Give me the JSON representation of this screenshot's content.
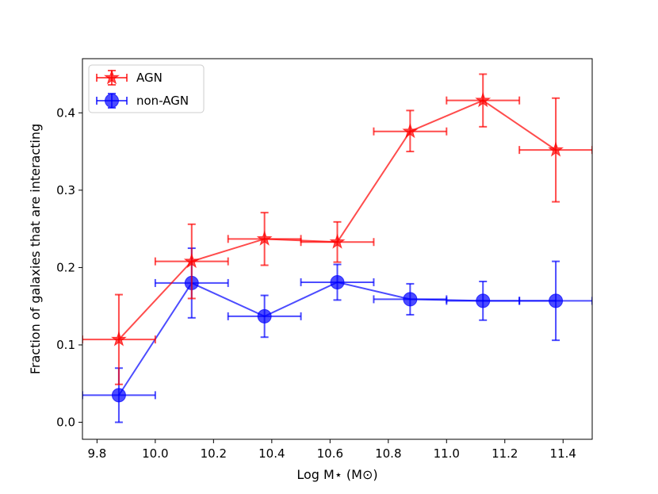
{
  "chart_data": {
    "type": "scatter",
    "title": "",
    "xlabel": "Log M⋆ (M⊙)",
    "ylabel": "Fraction of galaxies that are interacting",
    "xlim": [
      9.75,
      11.5
    ],
    "ylim": [
      -0.022,
      0.47
    ],
    "xticks": [
      9.8,
      10.0,
      10.2,
      10.4,
      10.6,
      10.8,
      11.0,
      11.2,
      11.4
    ],
    "xtick_labels": [
      "9.8",
      "10.0",
      "10.2",
      "10.4",
      "10.6",
      "10.8",
      "11.0",
      "11.2",
      "11.4"
    ],
    "yticks": [
      0.0,
      0.1,
      0.2,
      0.3,
      0.4
    ],
    "ytick_labels": [
      "0.0",
      "0.1",
      "0.2",
      "0.3",
      "0.4"
    ],
    "grid": false,
    "legend_position": "top-left",
    "series": [
      {
        "name": "AGN",
        "color": "#ff0000",
        "marker": "star",
        "x": [
          9.875,
          10.125,
          10.375,
          10.625,
          10.875,
          11.125,
          11.375
        ],
        "y": [
          0.107,
          0.208,
          0.237,
          0.233,
          0.376,
          0.416,
          0.352
        ],
        "xerr": [
          0.125,
          0.125,
          0.125,
          0.125,
          0.125,
          0.125,
          0.125
        ],
        "yerr_low": [
          0.058,
          0.048,
          0.034,
          0.026,
          0.026,
          0.034,
          0.067
        ],
        "yerr_high": [
          0.058,
          0.048,
          0.034,
          0.026,
          0.027,
          0.034,
          0.067
        ]
      },
      {
        "name": "non-AGN",
        "color": "#0000ff",
        "marker": "circle",
        "x": [
          9.875,
          10.125,
          10.375,
          10.625,
          10.875,
          11.125,
          11.375
        ],
        "y": [
          0.035,
          0.18,
          0.137,
          0.181,
          0.159,
          0.157,
          0.157
        ],
        "xerr": [
          0.125,
          0.125,
          0.125,
          0.125,
          0.125,
          0.125,
          0.125
        ],
        "yerr_low": [
          0.035,
          0.045,
          0.027,
          0.023,
          0.02,
          0.025,
          0.051
        ],
        "yerr_high": [
          0.035,
          0.045,
          0.027,
          0.023,
          0.02,
          0.025,
          0.051
        ]
      }
    ]
  }
}
